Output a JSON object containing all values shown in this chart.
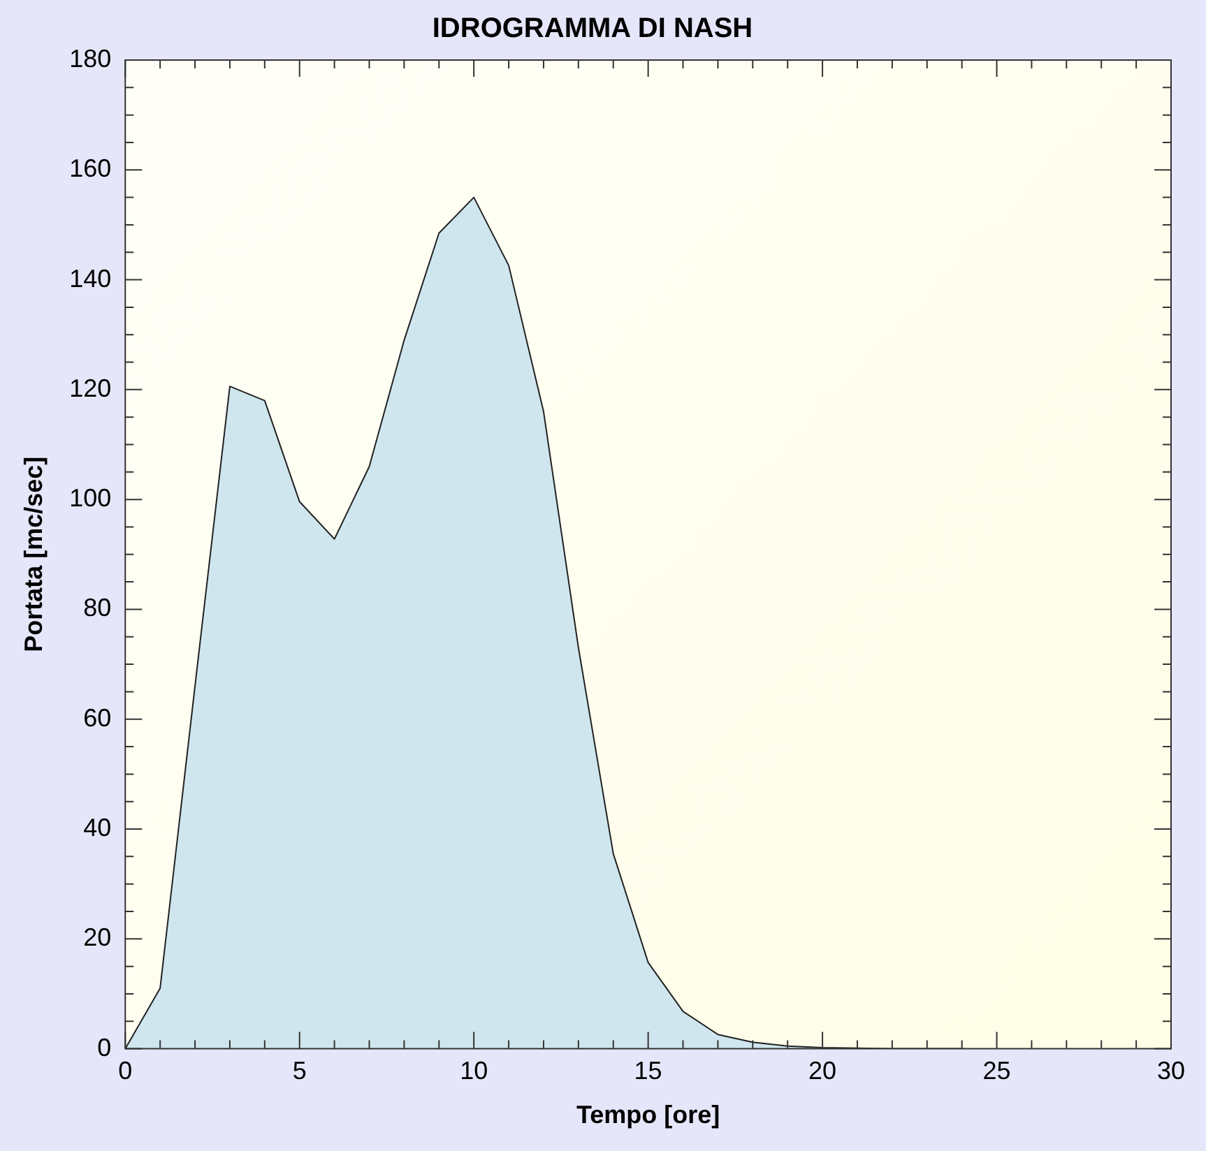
{
  "chart_data": {
    "type": "area",
    "title": "IDROGRAMMA DI NASH",
    "xlabel": "Tempo [ore]",
    "ylabel": "Portata [mc/sec]",
    "x": [
      0,
      1,
      2,
      3,
      4,
      5,
      6,
      7,
      8,
      9,
      10,
      11,
      12,
      13,
      14,
      15,
      16,
      17,
      18,
      19,
      20,
      21,
      22,
      23,
      24
    ],
    "series": [
      {
        "color": "#cfe6ee",
        "values": [
          0,
          11,
          66,
          120.6,
          118,
          99.6,
          92.8,
          106,
          129,
          148.5,
          155,
          142.6,
          116,
          73,
          35.5,
          15.7,
          6.8,
          2.6,
          1.2,
          0.5,
          0.2,
          0.1,
          0,
          0,
          0
        ]
      }
    ],
    "xlim": [
      0,
      30
    ],
    "xticks": [
      0,
      {
        "value": 1,
        "label": null
      },
      {
        "value": 2,
        "label": null
      },
      {
        "value": 3,
        "label": null
      },
      {
        "value": 4,
        "label": null
      },
      5,
      {
        "value": 6,
        "label": null
      },
      {
        "value": 7,
        "label": null
      },
      {
        "value": 8,
        "label": null
      },
      {
        "value": 9,
        "label": null
      },
      10,
      {
        "value": 11,
        "label": null
      },
      {
        "value": 12,
        "label": null
      },
      {
        "value": 13,
        "label": null
      },
      {
        "value": 14,
        "label": null
      },
      15,
      {
        "value": 16,
        "label": null
      },
      {
        "value": 17,
        "label": null
      },
      {
        "value": 18,
        "label": null
      },
      {
        "value": 19,
        "label": null
      },
      20,
      {
        "value": 21,
        "label": null
      },
      {
        "value": 22,
        "label": null
      },
      {
        "value": 23,
        "label": null
      },
      {
        "value": 24,
        "label": null
      },
      25,
      {
        "value": 26,
        "label": null
      },
      {
        "value": 27,
        "label": null
      },
      {
        "value": 28,
        "label": null
      },
      {
        "value": 29,
        "label": null
      },
      30
    ],
    "ylim": [
      0,
      180
    ],
    "yticks": [
      0,
      {
        "value": 5,
        "label": null
      },
      {
        "value": 10,
        "label": null
      },
      {
        "value": 15,
        "label": null
      },
      20,
      {
        "value": 25,
        "label": null
      },
      {
        "value": 30,
        "label": null
      },
      {
        "value": 35,
        "label": null
      },
      40,
      {
        "value": 45,
        "label": null
      },
      {
        "value": 50,
        "label": null
      },
      {
        "value": 55,
        "label": null
      },
      60,
      {
        "value": 65,
        "label": null
      },
      {
        "value": 70,
        "label": null
      },
      {
        "value": 75,
        "label": null
      },
      80,
      {
        "value": 85,
        "label": null
      },
      {
        "value": 90,
        "label": null
      },
      {
        "value": 95,
        "label": null
      },
      100,
      {
        "value": 105,
        "label": null
      },
      {
        "value": 110,
        "label": null
      },
      {
        "value": 115,
        "label": null
      },
      120,
      {
        "value": 125,
        "label": null
      },
      {
        "value": 130,
        "label": null
      },
      {
        "value": 135,
        "label": null
      },
      140,
      {
        "value": 145,
        "label": null
      },
      {
        "value": 150,
        "label": null
      },
      {
        "value": 155,
        "label": null
      },
      160,
      {
        "value": 165,
        "label": null
      },
      {
        "value": 170,
        "label": null
      },
      {
        "value": 175,
        "label": null
      },
      180
    ],
    "grid": false,
    "legend": false,
    "marker": "none",
    "line_style": "solid"
  }
}
